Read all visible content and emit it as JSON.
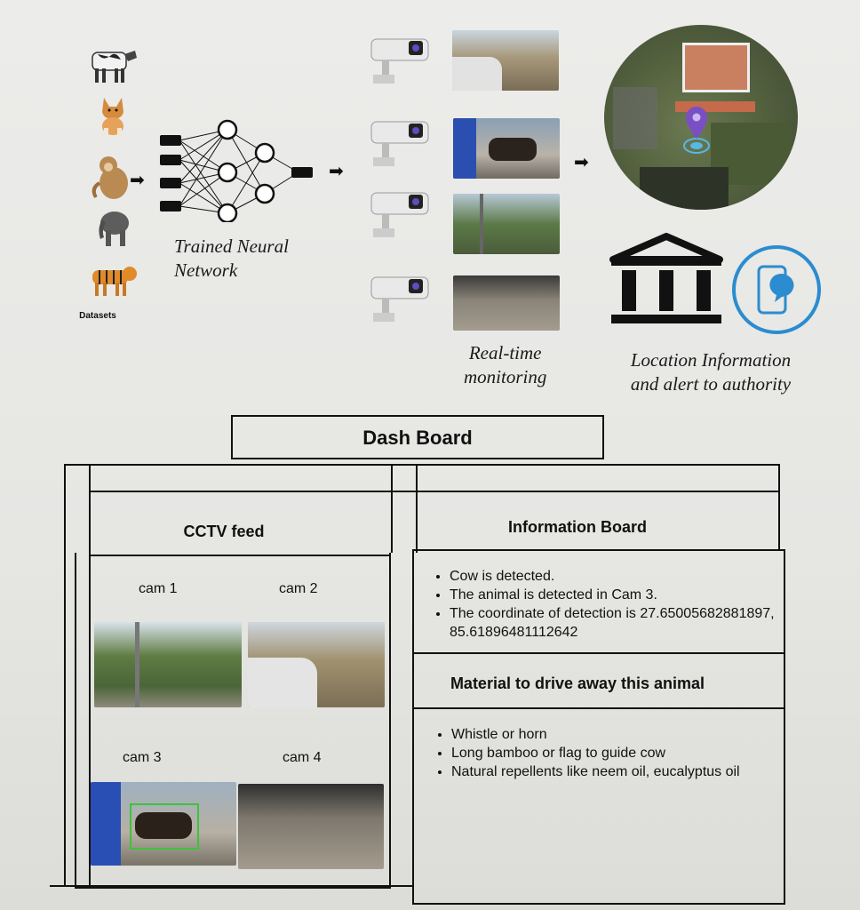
{
  "top": {
    "datasets_label": "Datasets",
    "network_label_line1": "Trained Neural",
    "network_label_line2": "Network",
    "monitoring_line1": "Real-time",
    "monitoring_line2": "monitoring",
    "location_line1": "Location Information",
    "location_line2": "and alert to authority"
  },
  "dashboard": {
    "title": "Dash Board",
    "cctv_title": "CCTV feed",
    "cams": [
      "cam 1",
      "cam 2",
      "cam 3",
      "cam 4"
    ],
    "info_title": "Information Board",
    "info_items": [
      "Cow is detected.",
      "The animal is detected in Cam 3.",
      "The coordinate of detection is 27.65005682881897, 85.61896481112642"
    ],
    "material_title": "Material to  drive away this animal",
    "material_items": [
      "Whistle or horn",
      "Long bamboo or flag to guide cow",
      "Natural repellents like neem oil, eucalyptus oil"
    ]
  },
  "colors": {
    "accent_blue": "#2b8ccf",
    "pin_purple": "#7a4fc4",
    "line": "#111111"
  }
}
